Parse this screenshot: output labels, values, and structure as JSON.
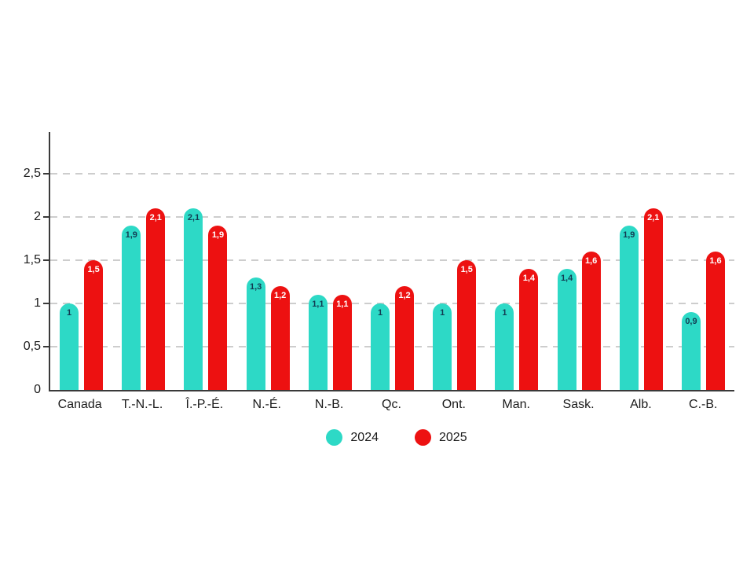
{
  "chart_data": {
    "type": "bar",
    "title": "",
    "categories": [
      "Canada",
      "T.-N.-L.",
      "Î.-P.-É.",
      "N.-É.",
      "N.-B.",
      "Qc.",
      "Ont.",
      "Man.",
      "Sask.",
      "Alb.",
      "C.-B."
    ],
    "series": [
      {
        "name": "2024",
        "color": "#2DD9C6",
        "label_color": "#123b52",
        "values": [
          1,
          1.9,
          2.1,
          1.3,
          1.1,
          1,
          1,
          1,
          1.4,
          1.9,
          0.9
        ],
        "labels": [
          "1",
          "1,9",
          "2,1",
          "1,3",
          "1,1",
          "1",
          "1",
          "1",
          "1,4",
          "1,9",
          "0,9"
        ]
      },
      {
        "name": "2025",
        "color": "#ED1111",
        "label_color": "#ffffff",
        "values": [
          1.5,
          2.1,
          1.9,
          1.2,
          1.1,
          1.2,
          1.5,
          1.4,
          1.6,
          2.1,
          1.6
        ],
        "labels": [
          "1,5",
          "2,1",
          "1,9",
          "1,2",
          "1,1",
          "1,2",
          "1,5",
          "1,4",
          "1,6",
          "2,1",
          "1,6"
        ]
      }
    ],
    "ylim": [
      0,
      3
    ],
    "yticks": [
      0,
      0.5,
      1,
      1.5,
      2,
      2.5
    ],
    "ytick_labels": [
      "0",
      "0,5",
      "1",
      "1,5",
      "2",
      "2,5"
    ],
    "grid": "horizontal dashed lines at 0.5 intervals",
    "legend_position": "bottom-center",
    "legend": [
      "2024",
      "2025"
    ]
  }
}
